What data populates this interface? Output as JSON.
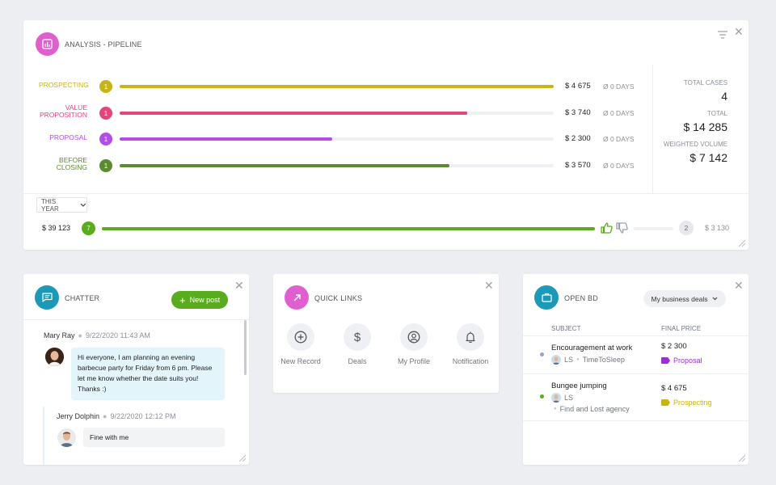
{
  "pipeline": {
    "title": "ANALYSIS - PIPELINE",
    "stages": [
      {
        "label_line1": "PROSPECTING",
        "label_line2": "",
        "count": "1",
        "amount": "$ 4 675",
        "days": "Ø 0 DAYS",
        "fill": 1.0,
        "color": "#c9b418"
      },
      {
        "label_line1": "VALUE",
        "label_line2": "PROPOSITION",
        "count": "1",
        "amount": "$ 3 740",
        "days": "Ø 0 DAYS",
        "fill": 0.8,
        "color": "#e4457a"
      },
      {
        "label_line1": "PROPOSAL",
        "label_line2": "",
        "count": "1",
        "amount": "$ 2 300",
        "days": "Ø 0 DAYS",
        "fill": 0.49,
        "color": "#b24de6"
      },
      {
        "label_line1": "BEFORE",
        "label_line2": "CLOSING",
        "count": "1",
        "amount": "$ 3 570",
        "days": "Ø 0 DAYS",
        "fill": 0.76,
        "color": "#5a8b2e"
      }
    ],
    "stats": {
      "total_cases_label": "TOTAL CASES",
      "total_cases": "4",
      "total_label": "TOTAL",
      "total": "$ 14 285",
      "weighted_label": "WEIGHTED VOLUME",
      "weighted": "$ 7 142"
    },
    "period": "THIS YEAR",
    "summary": {
      "won_amount": "$ 39 123",
      "won_count": "7",
      "won_fill": 1.0,
      "lost_count": "2",
      "lost_amount": "$ 3 130",
      "lost_fill": 0.0
    }
  },
  "chatter": {
    "title": "CHATTER",
    "new_post": "New post",
    "messages": [
      {
        "author": "Mary Ray",
        "date": "9/22/2020 11:43 AM",
        "text": "Hi everyone, I am planning an evening barbecue party for Friday from 6 pm. Please let me know whether the date suits you! Thanks :)"
      },
      {
        "author": "Jerry Dolphin",
        "date": "9/22/2020 12:12 PM",
        "text": "Fine with me"
      }
    ]
  },
  "quick_links": {
    "title": "QUICK LINKS",
    "items": [
      {
        "label": "New Record",
        "icon": "plus-circle-icon"
      },
      {
        "label": "Deals",
        "icon": "dollar-icon"
      },
      {
        "label": "My Profile",
        "icon": "user-icon"
      },
      {
        "label": "Notification",
        "icon": "bell-icon"
      }
    ]
  },
  "open_bd": {
    "title": "OPEN BD",
    "filter": "My business deals",
    "col_subject": "SUBJECT",
    "col_price": "FINAL PRICE",
    "rows": [
      {
        "title": "Encouragement at work",
        "owner": "LS",
        "company": "TimeToSleep",
        "price": "$ 2 300",
        "stage": "Proposal",
        "stage_color": "#9b2fd1",
        "dot_color": "#9aa0c8"
      },
      {
        "title": "Bungee jumping",
        "owner": "LS",
        "company": "Find and Lost agency",
        "price": "$ 4 675",
        "stage": "Prospecting",
        "stage_color": "#c9b418",
        "dot_color": "#5aab1e"
      }
    ]
  },
  "colors": {
    "pipeline_icon": "#e05fcf",
    "chatter_icon": "#1b9ab8",
    "quick_icon": "#e05fcf",
    "bd_icon": "#1b9ab8",
    "won": "#5aab1e"
  }
}
